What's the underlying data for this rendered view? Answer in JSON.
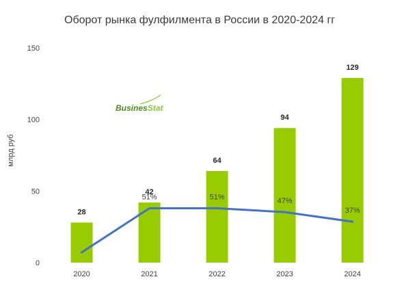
{
  "chart_data": {
    "type": "bar",
    "title": "Оборот рынка фулфилмента в России в 2020-2024 гг",
    "ylabel": "млрд руб",
    "xlabel": "",
    "ylim": [
      0,
      150
    ],
    "yticks": [
      "0",
      "50",
      "100",
      "150"
    ],
    "categories": [
      "2020",
      "2021",
      "2022",
      "2023",
      "2024"
    ],
    "values": [
      28,
      42,
      64,
      94,
      129
    ],
    "bar_labels": [
      "28",
      "42",
      "64",
      "94",
      "129"
    ],
    "line": {
      "values": [
        5,
        51,
        51,
        47,
        37
      ],
      "labels": [
        "",
        "51%",
        "51%",
        "47%",
        "37%"
      ]
    },
    "grid": false,
    "logo": "BusinesStat"
  },
  "colors": {
    "bar": "#99cc00",
    "line": "#4472c4",
    "logo_dark": "#4e8a1f",
    "logo_light": "#8cc63f"
  }
}
